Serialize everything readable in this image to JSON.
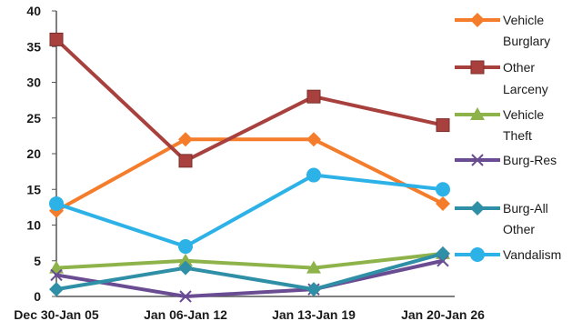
{
  "chart_data": {
    "type": "line",
    "categories": [
      "Dec 30-Jan 05",
      "Jan 06-Jan 12",
      "Jan 13-Jan 19",
      "Jan 20-Jan 26"
    ],
    "ylim": [
      0,
      40
    ],
    "yticks": [
      0,
      5,
      10,
      15,
      20,
      25,
      30,
      35,
      40
    ],
    "grid": false,
    "legend_position": "right",
    "series": [
      {
        "name": [
          "Vehicle",
          "Burglary"
        ],
        "color": "#f47c2a",
        "marker": "diamond",
        "values": [
          12,
          22,
          22,
          13
        ]
      },
      {
        "name": [
          "Other",
          "Larceny"
        ],
        "color": "#a8413d",
        "marker": "square",
        "values": [
          36,
          19,
          28,
          24
        ]
      },
      {
        "name": [
          "Vehicle",
          "Theft"
        ],
        "color": "#8db34a",
        "marker": "triangle",
        "values": [
          4,
          5,
          4,
          6
        ]
      },
      {
        "name": [
          "Burg-Res"
        ],
        "color": "#6a4c93",
        "marker": "x",
        "values": [
          3,
          0,
          1,
          5
        ]
      },
      {
        "name": [
          "Burg-All",
          "Other"
        ],
        "color": "#2f8fa6",
        "marker": "diamond",
        "values": [
          1,
          4,
          1,
          6
        ]
      },
      {
        "name": [
          "Vandalism"
        ],
        "color": "#2db2e8",
        "marker": "circle",
        "values": [
          13,
          7,
          17,
          15
        ]
      }
    ]
  }
}
